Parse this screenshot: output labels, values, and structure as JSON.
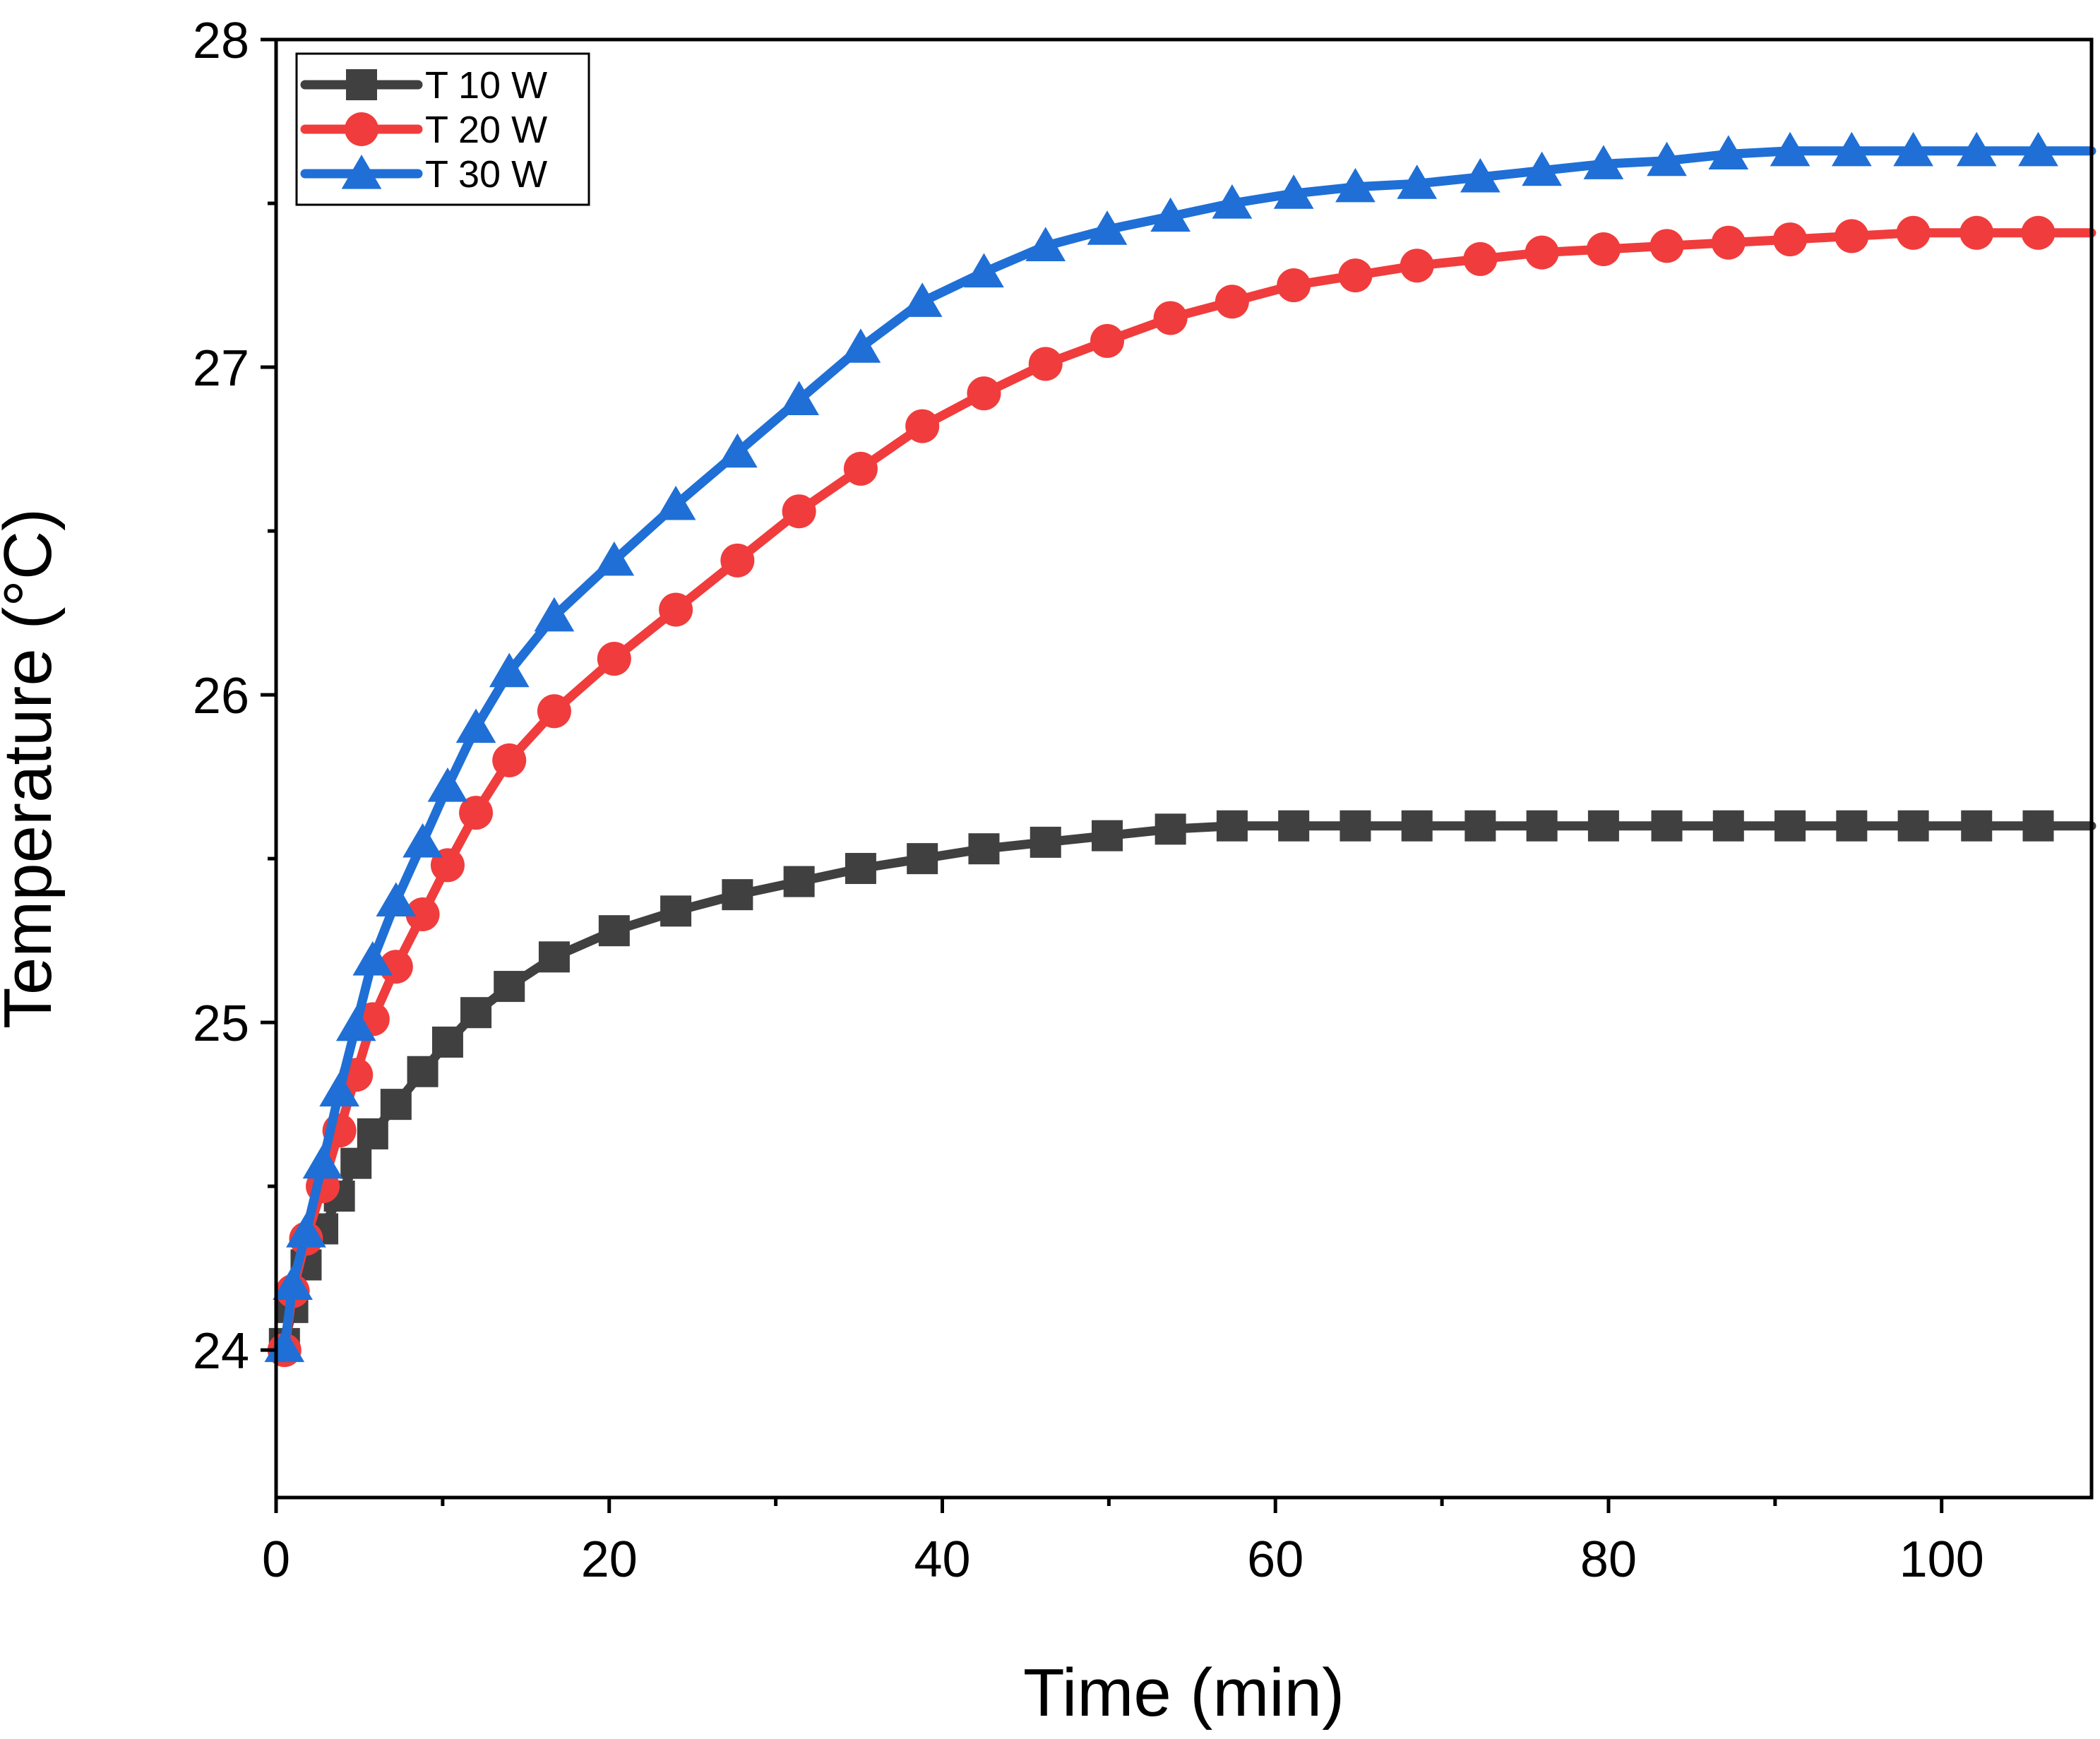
{
  "chart_data": {
    "type": "line",
    "title": "",
    "xlabel": "Time (min)",
    "ylabel": "Temperature (°C)",
    "xlim": [
      0,
      109
    ],
    "ylim": [
      23.55,
      28
    ],
    "x_ticks": [
      0,
      20,
      40,
      60,
      80,
      100
    ],
    "x_tick_labels": [
      "0",
      "20",
      "40",
      "60",
      "80",
      "100"
    ],
    "y_ticks": [
      24,
      25,
      26,
      27,
      28
    ],
    "y_tick_labels": [
      "24",
      "25",
      "26",
      "27",
      "28"
    ],
    "grid": false,
    "legend_position": "top-left",
    "x": [
      0.5,
      1.0,
      1.8,
      2.8,
      3.8,
      4.8,
      5.8,
      7.2,
      8.8,
      10.3,
      12.0,
      14.0,
      16.7,
      20.3,
      24.0,
      27.7,
      31.4,
      35.1,
      38.8,
      42.5,
      46.2,
      49.9,
      53.7,
      57.4,
      61.1,
      64.8,
      68.5,
      72.3,
      76.0,
      79.7,
      83.5,
      87.2,
      90.9,
      94.6,
      98.3,
      102.1,
      105.8
    ],
    "series": [
      {
        "name": "T 10 W",
        "color": "#404040",
        "marker": "square",
        "values": [
          24.02,
          24.13,
          24.26,
          24.37,
          24.47,
          24.57,
          24.66,
          24.75,
          24.85,
          24.94,
          25.03,
          25.11,
          25.2,
          25.28,
          25.34,
          25.39,
          25.43,
          25.47,
          25.5,
          25.53,
          25.55,
          25.57,
          25.59,
          25.6,
          25.6,
          25.6,
          25.6,
          25.6,
          25.6,
          25.6,
          25.6,
          25.6,
          25.6,
          25.6,
          25.6,
          25.6,
          25.6
        ]
      },
      {
        "name": "T 20 W",
        "color": "#f03c3c",
        "marker": "circle",
        "values": [
          24.0,
          24.18,
          24.34,
          24.5,
          24.67,
          24.84,
          25.01,
          25.17,
          25.33,
          25.48,
          25.64,
          25.8,
          25.95,
          26.11,
          26.26,
          26.41,
          26.56,
          26.69,
          26.82,
          26.92,
          27.01,
          27.08,
          27.15,
          27.2,
          27.25,
          27.28,
          27.31,
          27.33,
          27.35,
          27.36,
          27.37,
          27.38,
          27.39,
          27.4,
          27.41,
          27.41,
          27.41
        ]
      },
      {
        "name": "T 30 W",
        "color": "#1f6fd6",
        "marker": "triangle",
        "values": [
          24.01,
          24.2,
          24.36,
          24.57,
          24.79,
          24.99,
          25.19,
          25.37,
          25.55,
          25.72,
          25.9,
          26.07,
          26.24,
          26.41,
          26.58,
          26.74,
          26.9,
          27.06,
          27.2,
          27.29,
          27.37,
          27.42,
          27.46,
          27.5,
          27.53,
          27.55,
          27.56,
          27.58,
          27.6,
          27.62,
          27.63,
          27.65,
          27.66,
          27.66,
          27.66,
          27.66,
          27.66
        ]
      }
    ]
  }
}
